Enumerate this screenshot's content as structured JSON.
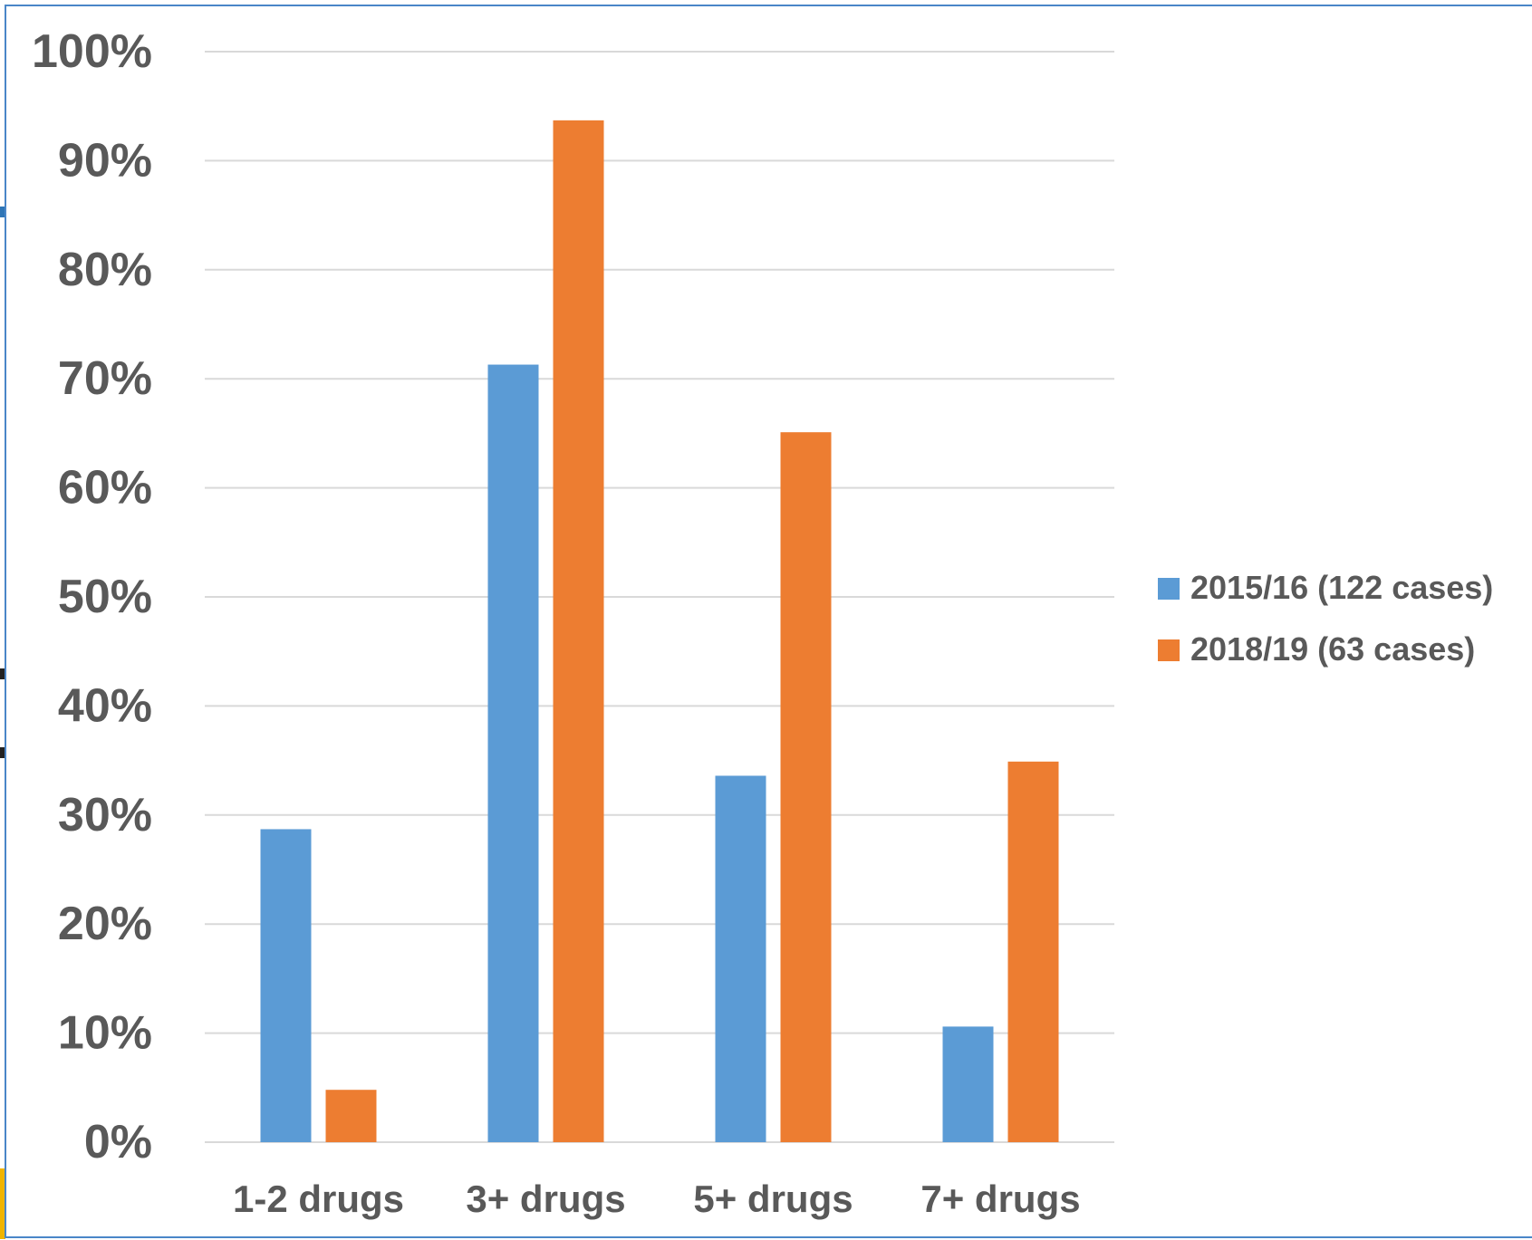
{
  "chart_data": {
    "type": "bar",
    "title": "",
    "xlabel": "",
    "ylabel": "",
    "categories": [
      "1-2 drugs",
      "3+ drugs",
      "5+ drugs",
      "7+ drugs"
    ],
    "series": [
      {
        "name": "2015/16 (122 cases)",
        "color": "#5b9bd5",
        "values": [
          28.7,
          71.3,
          33.6,
          10.6
        ]
      },
      {
        "name": "2018/19 (63 cases)",
        "color": "#ed7d31",
        "values": [
          4.8,
          93.7,
          65.1,
          34.9
        ]
      }
    ],
    "ylim": [
      0,
      100
    ],
    "yticks": [
      "0%",
      "10%",
      "20%",
      "30%",
      "40%",
      "50%",
      "60%",
      "70%",
      "80%",
      "90%",
      "100%"
    ],
    "grid": true,
    "legend_position": "right"
  },
  "colors": {
    "frame": "#4a86c8",
    "gridline": "#d9d9d9",
    "text": "#595959"
  }
}
